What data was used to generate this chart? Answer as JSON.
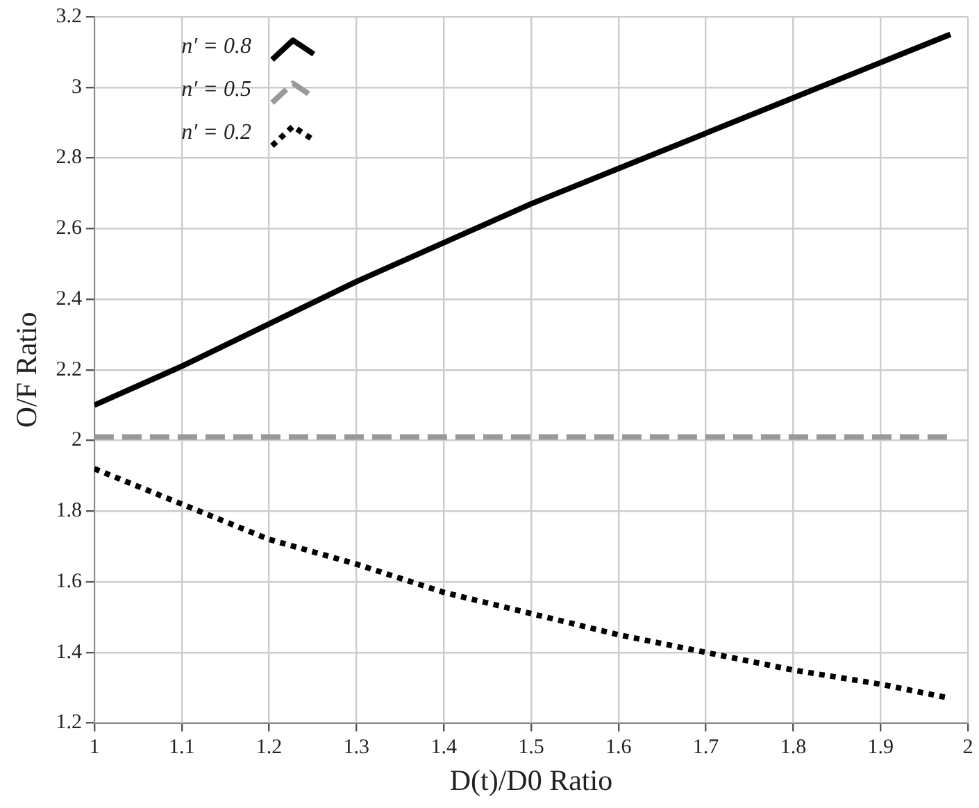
{
  "chart_data": {
    "type": "line",
    "xlabel": "D(t)/D0 Ratio",
    "ylabel": "O/F Ratio",
    "xlim": [
      1,
      2
    ],
    "ylim": [
      1.2,
      3.2
    ],
    "xticks": [
      1,
      1.1,
      1.2,
      1.3,
      1.4,
      1.5,
      1.6,
      1.7,
      1.8,
      1.9,
      2
    ],
    "yticks": [
      1.2,
      1.4,
      1.6,
      1.8,
      2,
      2.2,
      2.4,
      2.6,
      2.8,
      3,
      3.2
    ],
    "grid": true,
    "legend": "top left",
    "marker": "none",
    "x": [
      1,
      1.1,
      1.2,
      1.3,
      1.4,
      1.5,
      1.6,
      1.7,
      1.8,
      1.9,
      1.98
    ],
    "series": [
      {
        "name": "n′ = 0.8",
        "color": "#000000",
        "line_style": "solid",
        "values": [
          2.1,
          2.21,
          2.33,
          2.45,
          2.56,
          2.67,
          2.77,
          2.87,
          2.97,
          3.07,
          3.15
        ]
      },
      {
        "name": "n′ = 0.5",
        "color": "#999999",
        "line_style": "dashed",
        "values": [
          2.01,
          2.01,
          2.01,
          2.01,
          2.01,
          2.01,
          2.01,
          2.01,
          2.01,
          2.01,
          2.01
        ]
      },
      {
        "name": "n′ = 0.2",
        "color": "#000000",
        "line_style": "dotted",
        "values": [
          1.92,
          1.82,
          1.72,
          1.65,
          1.57,
          1.51,
          1.45,
          1.4,
          1.35,
          1.31,
          1.27
        ]
      }
    ]
  }
}
